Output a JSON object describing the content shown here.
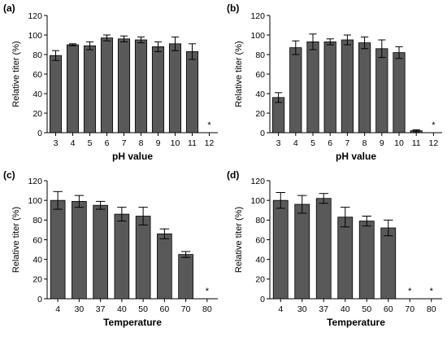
{
  "chart_data": [
    {
      "type": "bar",
      "panel_label": "(a)",
      "xlabel": "pH value",
      "ylabel": "Relative titer (%)",
      "ylim": [
        0,
        120
      ],
      "yticks": [
        0,
        20,
        40,
        60,
        80,
        100,
        120
      ],
      "categories": [
        "3",
        "4",
        "5",
        "6",
        "7",
        "8",
        "9",
        "10",
        "11",
        "12"
      ],
      "values": [
        79,
        90,
        89,
        97,
        96,
        95,
        88,
        91,
        83,
        0
      ],
      "errors": [
        5,
        1,
        4,
        3,
        3,
        3,
        5,
        7,
        8,
        0
      ],
      "annotations": [
        {
          "category": "12",
          "text": "*"
        }
      ],
      "bar_color": "#595959"
    },
    {
      "type": "bar",
      "panel_label": "(b)",
      "xlabel": "pH value",
      "ylabel": "Relative titer (%)",
      "ylim": [
        0,
        120
      ],
      "yticks": [
        0,
        20,
        40,
        60,
        80,
        100,
        120
      ],
      "categories": [
        "3",
        "4",
        "5",
        "6",
        "7",
        "8",
        "9",
        "10",
        "11",
        "12"
      ],
      "values": [
        36,
        87,
        93,
        93,
        95,
        92,
        86,
        82,
        2,
        0
      ],
      "errors": [
        5,
        7,
        8,
        3,
        5,
        6,
        9,
        6,
        1,
        0
      ],
      "annotations": [
        {
          "category": "12",
          "text": "*"
        }
      ],
      "bar_color": "#595959"
    },
    {
      "type": "bar",
      "panel_label": "(c)",
      "xlabel": "Temperature",
      "ylabel": "Relative titer (%)",
      "ylim": [
        0,
        120
      ],
      "yticks": [
        0,
        20,
        40,
        60,
        80,
        100,
        120
      ],
      "categories": [
        "4",
        "30",
        "37",
        "40",
        "50",
        "60",
        "70",
        "80"
      ],
      "values": [
        100,
        99,
        95,
        86,
        84,
        66,
        45,
        0
      ],
      "errors": [
        9,
        6,
        4,
        7,
        9,
        5,
        3,
        0
      ],
      "annotations": [
        {
          "category": "80",
          "text": "*"
        }
      ],
      "bar_color": "#595959"
    },
    {
      "type": "bar",
      "panel_label": "(d)",
      "xlabel": "Temperature",
      "ylabel": "Relative titer (%)",
      "ylim": [
        0,
        120
      ],
      "yticks": [
        0,
        20,
        40,
        60,
        80,
        100,
        120
      ],
      "categories": [
        "4",
        "30",
        "37",
        "40",
        "50",
        "60",
        "70",
        "80"
      ],
      "values": [
        100,
        96,
        102,
        83,
        79,
        72,
        0,
        0
      ],
      "errors": [
        8,
        9,
        5,
        10,
        5,
        8,
        0,
        0
      ],
      "annotations": [
        {
          "category": "70",
          "text": "*"
        },
        {
          "category": "80",
          "text": "*"
        }
      ],
      "bar_color": "#595959"
    }
  ]
}
